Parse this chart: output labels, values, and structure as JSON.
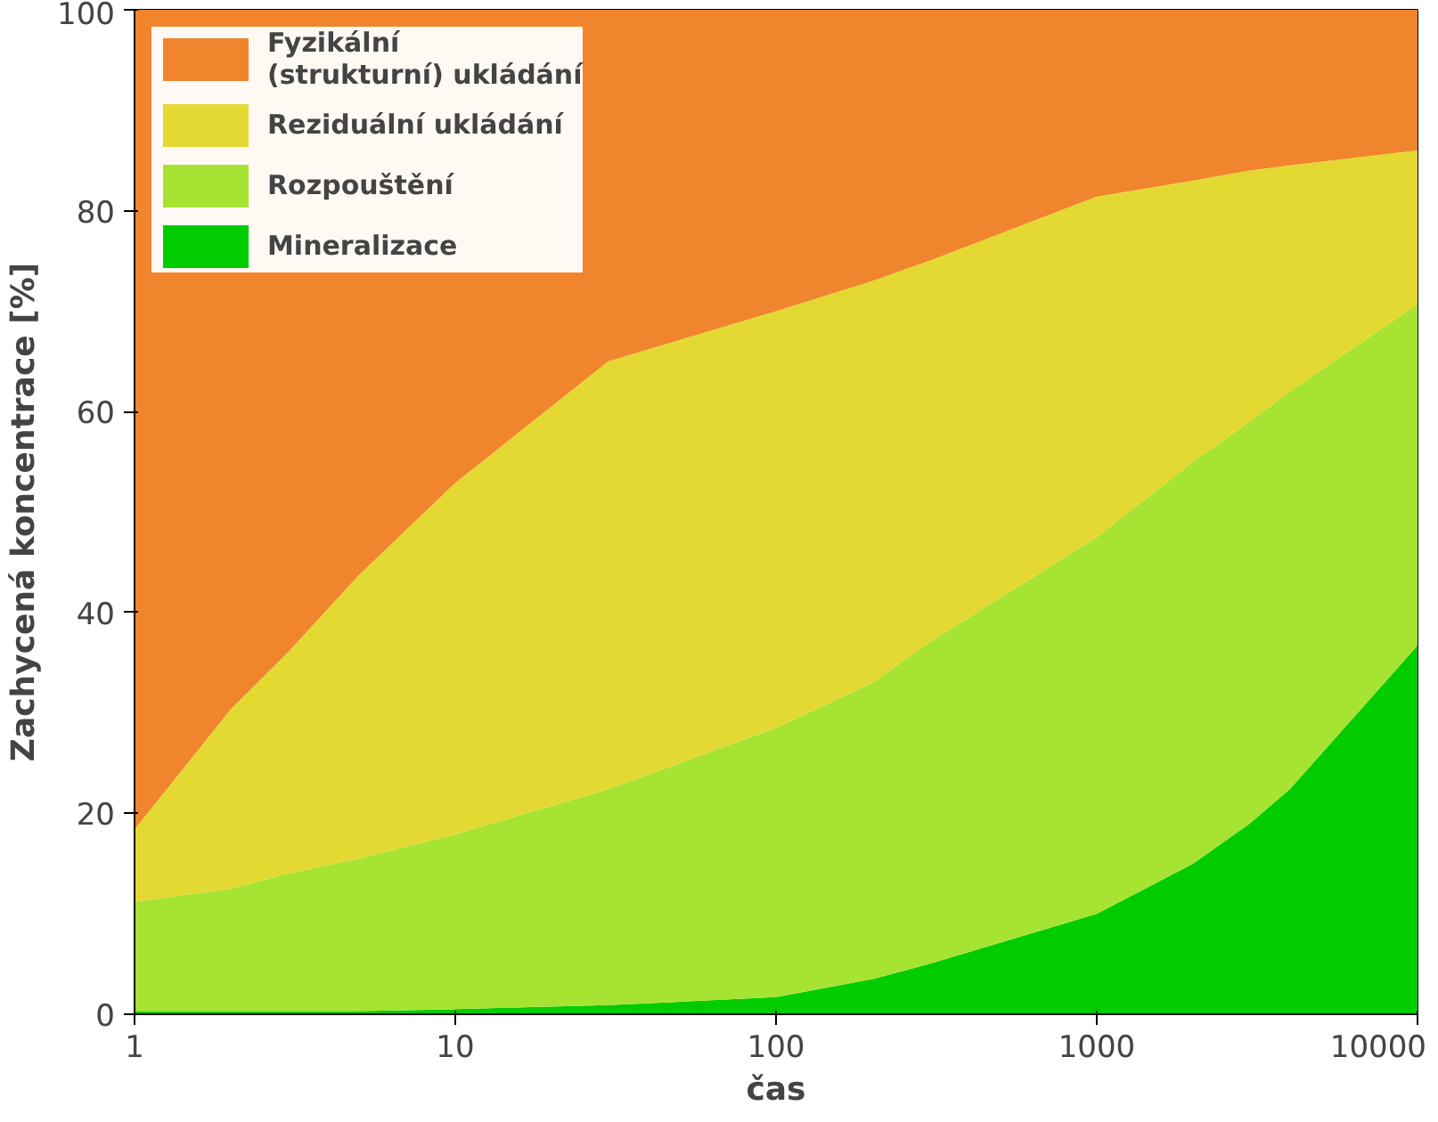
{
  "chart_data": {
    "type": "area",
    "stacked": true,
    "log": "x",
    "xlabel": "čas",
    "ylabel": "Zachycená koncentrace [%]",
    "x": [
      1,
      2,
      3,
      5,
      10,
      30,
      100,
      200,
      300,
      1000,
      2000,
      3000,
      4000,
      10000
    ],
    "series": [
      {
        "name": "Mineralizace",
        "color": "#00cc00",
        "values": [
          0.3,
          0.3,
          0.3,
          0.3,
          0.5,
          0.9,
          1.7,
          3.5,
          5,
          10,
          15,
          19,
          22.4,
          36.7
        ]
      },
      {
        "name": "Rozpouštění",
        "color": "#a6e332",
        "values": [
          10.9,
          12.2,
          13.7,
          15.2,
          17.4,
          21.5,
          26.8,
          29.5,
          32,
          37.5,
          40,
          40,
          39.6,
          34
        ]
      },
      {
        "name": "Reziduální ukládání",
        "color": "#e3d932",
        "values": [
          7.2,
          17.9,
          22,
          28.2,
          35,
          42.6,
          41.5,
          40,
          38,
          33.9,
          28,
          25,
          22.5,
          15.3
        ]
      },
      {
        "name": "Fyzikální\n(strukturní) ukládání",
        "color": "#f0852d",
        "values": [
          81.6,
          69.6,
          64,
          56.3,
          47.1,
          35,
          30,
          27,
          25,
          18.6,
          17,
          16,
          15.5,
          14
        ]
      }
    ],
    "xlim": [
      1,
      10000
    ],
    "xticks": [
      1,
      10,
      100,
      1000,
      10000
    ],
    "ylim": [
      0,
      100
    ],
    "yticks": [
      0,
      20,
      40,
      60,
      80,
      100
    ],
    "grid": false,
    "legend": "top left"
  }
}
